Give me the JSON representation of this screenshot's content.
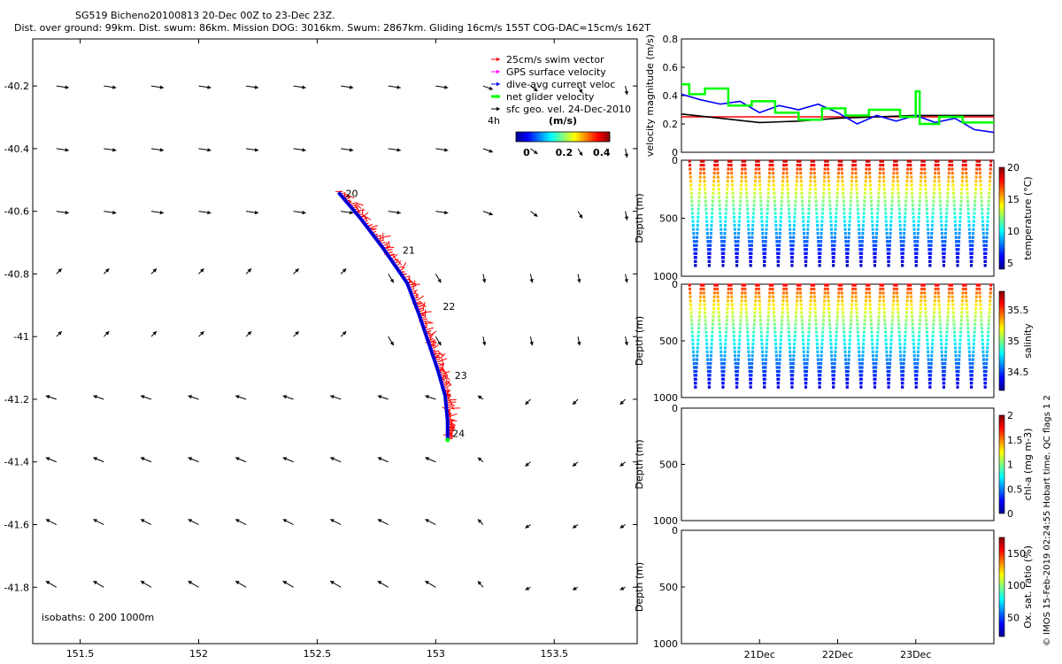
{
  "title": {
    "line1": "SG519 Bicheno20100813 20-Dec 00Z to 23-Dec 23Z.",
    "line2": "Dist. over ground: 99km. Dist. swum: 86km. Mission DOG: 3016km. Swum: 2867km. Gliding 16cm/s 155T COG-DAC=15cm/s 162T"
  },
  "credit": "© IMOS 15-Feb-2019 02:24:55 Hobart time. QC flags 1  2",
  "colors": {
    "swim": "#ff0000",
    "gps": "#ff00ff",
    "dac": "#0000ff",
    "glider": "#00ff00",
    "geo": "#000000"
  },
  "chart_data": [
    {
      "type": "scatter",
      "name": "map",
      "xlim": [
        151.3,
        153.85
      ],
      "ylim": [
        -41.98,
        -40.05
      ],
      "x_ticks": [
        151.5,
        152,
        152.5,
        153,
        153.5
      ],
      "x_tick_labels": [
        "151.5",
        "152",
        "152.5",
        "153",
        "153.5"
      ],
      "y_ticks": [
        -40.2,
        -40.4,
        -40.6,
        -40.8,
        -41,
        -41.2,
        -41.4,
        -41.6,
        -41.8
      ],
      "y_tick_labels": [
        "-40.2",
        "-40.4",
        "-40.6",
        "-40.8",
        "-41",
        "-41.2",
        "-41.4",
        "-41.6",
        "-41.8"
      ],
      "legend": {
        "placement": "top-right",
        "entries": [
          "25cm/s swim vector",
          "GPS surface velocity",
          "dive-avg current veloc",
          "net glider velocity",
          "sfc geo. vel. 24-Dec-2010"
        ]
      },
      "colorbar": {
        "label": "(m/s)",
        "prefix": "4h",
        "ticks": [
          0,
          0.2,
          0.4
        ],
        "tick_labels": [
          "0",
          "0.2",
          "0.4"
        ],
        "range": [
          0,
          0.5
        ]
      },
      "isobaths_label": "isobaths: 0   200   1000m",
      "track": {
        "lon": [
          152.59,
          152.68,
          152.78,
          152.88,
          152.93,
          152.97,
          153.01,
          153.04,
          153.05,
          153.05
        ],
        "lat": [
          -40.54,
          -40.62,
          -40.72,
          -40.83,
          -40.93,
          -41.02,
          -41.11,
          -41.19,
          -41.27,
          -41.33
        ]
      },
      "day_labels": [
        {
          "text": "20",
          "lon": 152.62,
          "lat": -40.555
        },
        {
          "text": "21",
          "lon": 152.86,
          "lat": -40.735
        },
        {
          "text": "22",
          "lon": 153.03,
          "lat": -40.915
        },
        {
          "text": "23",
          "lon": 153.08,
          "lat": -41.135
        },
        {
          "text": "24",
          "lon": 153.07,
          "lat": -41.32
        }
      ],
      "geo_grid": {
        "lon": [
          151.4,
          151.6,
          151.8,
          152.0,
          152.2,
          152.4,
          152.6,
          152.8,
          153.0,
          153.2,
          153.4,
          153.6,
          153.8
        ],
        "lat": [
          -40.2,
          -40.4,
          -40.6,
          -40.8,
          -41.0,
          -41.2,
          -41.4,
          -41.6,
          -41.8
        ]
      }
    },
    {
      "type": "line",
      "name": "velocity",
      "ylabel": "velocity magnitude (m/s)",
      "ylim": [
        0,
        0.8
      ],
      "y_ticks": [
        0,
        0.2,
        0.4,
        0.6,
        0.8
      ],
      "y_tick_labels": [
        "0",
        "0.2",
        "0.4",
        "0.6",
        "0.8"
      ],
      "xlim": [
        0,
        4
      ],
      "series": [
        {
          "color": "#ff0000",
          "values": [
            [
              0.0,
              0.25
            ],
            [
              4.0,
              0.25
            ]
          ]
        },
        {
          "color": "#000000",
          "values": [
            [
              0,
              0.27
            ],
            [
              0.5,
              0.24
            ],
            [
              1.0,
              0.21
            ],
            [
              1.5,
              0.22
            ],
            [
              2.0,
              0.24
            ],
            [
              2.5,
              0.25
            ],
            [
              3.0,
              0.26
            ],
            [
              3.5,
              0.26
            ],
            [
              4.0,
              0.26
            ]
          ]
        },
        {
          "color": "#0000ff",
          "values": [
            [
              0,
              0.41
            ],
            [
              0.25,
              0.37
            ],
            [
              0.5,
              0.34
            ],
            [
              0.75,
              0.36
            ],
            [
              1.0,
              0.28
            ],
            [
              1.25,
              0.33
            ],
            [
              1.5,
              0.3
            ],
            [
              1.75,
              0.34
            ],
            [
              2.0,
              0.28
            ],
            [
              2.25,
              0.2
            ],
            [
              2.5,
              0.26
            ],
            [
              2.75,
              0.22
            ],
            [
              3.0,
              0.26
            ],
            [
              3.25,
              0.21
            ],
            [
              3.5,
              0.24
            ],
            [
              3.75,
              0.16
            ],
            [
              4.0,
              0.14
            ]
          ]
        },
        {
          "color": "#00ff00",
          "values": [
            [
              0,
              0.48
            ],
            [
              0.1,
              0.48
            ],
            [
              0.1,
              0.41
            ],
            [
              0.3,
              0.41
            ],
            [
              0.3,
              0.45
            ],
            [
              0.6,
              0.45
            ],
            [
              0.6,
              0.33
            ],
            [
              0.9,
              0.33
            ],
            [
              0.9,
              0.36
            ],
            [
              1.2,
              0.36
            ],
            [
              1.2,
              0.28
            ],
            [
              1.5,
              0.28
            ],
            [
              1.5,
              0.23
            ],
            [
              1.8,
              0.23
            ],
            [
              1.8,
              0.31
            ],
            [
              2.1,
              0.31
            ],
            [
              2.1,
              0.26
            ],
            [
              2.4,
              0.26
            ],
            [
              2.4,
              0.3
            ],
            [
              2.8,
              0.3
            ],
            [
              2.8,
              0.25
            ],
            [
              3.0,
              0.25
            ],
            [
              3.0,
              0.43
            ],
            [
              3.05,
              0.43
            ],
            [
              3.05,
              0.2
            ],
            [
              3.3,
              0.2
            ],
            [
              3.3,
              0.25
            ],
            [
              3.6,
              0.25
            ],
            [
              3.6,
              0.21
            ],
            [
              4.0,
              0.21
            ]
          ]
        }
      ]
    },
    {
      "type": "scatter",
      "name": "temperature",
      "ylabel": "Depth (m)",
      "colorbar_label": "temperature (°C)",
      "ylim": [
        1000,
        0
      ],
      "y_ticks": [
        0,
        500,
        1000
      ],
      "y_tick_labels": [
        "0",
        "500",
        "1000"
      ],
      "clim": [
        4,
        20
      ],
      "colorbar_ticks": [
        5,
        10,
        15,
        20
      ],
      "colorbar_tick_labels": [
        "5",
        "10",
        "15",
        "20"
      ],
      "dives": 22,
      "max_depth": 900,
      "surface_value": 19,
      "deep_value": 5
    },
    {
      "type": "scatter",
      "name": "salinity",
      "ylabel": "Depth (m)",
      "colorbar_label": "salinity",
      "ylim": [
        1000,
        0
      ],
      "y_ticks": [
        0,
        500,
        1000
      ],
      "y_tick_labels": [
        "0",
        "500",
        "1000"
      ],
      "clim": [
        34.2,
        35.8
      ],
      "colorbar_ticks": [
        34.5,
        35,
        35.5
      ],
      "colorbar_tick_labels": [
        "34.5",
        "35",
        "35.5"
      ],
      "dives": 22,
      "max_depth": 900,
      "surface_value": 35.6,
      "deep_value": 34.35
    },
    {
      "type": "scatter",
      "name": "chla",
      "ylabel": "Depth (m)",
      "colorbar_label": "chl-a (mg m-3)",
      "ylim": [
        1000,
        0
      ],
      "y_ticks": [
        0,
        500,
        1000
      ],
      "y_tick_labels": [
        "0",
        "500",
        "1000"
      ],
      "clim": [
        0,
        2
      ],
      "colorbar_ticks": [
        0,
        0.5,
        1,
        1.5,
        2
      ],
      "colorbar_tick_labels": [
        "0",
        "0.5",
        "1",
        "1.5",
        "2"
      ]
    },
    {
      "type": "scatter",
      "name": "oxsat",
      "ylabel": "Depth (m)",
      "colorbar_label": "Ox. sat. ratio (%)",
      "ylim": [
        1000,
        0
      ],
      "y_ticks": [
        0,
        500,
        1000
      ],
      "y_tick_labels": [
        "0",
        "500",
        "1000"
      ],
      "clim": [
        20,
        175
      ],
      "colorbar_ticks": [
        50,
        100,
        150
      ],
      "colorbar_tick_labels": [
        "50",
        "100",
        "150"
      ],
      "x_tick_labels": [
        "21Dec",
        "22Dec",
        "23Dec"
      ],
      "x_ticks": [
        1,
        2,
        3
      ],
      "xlim": [
        0,
        4
      ]
    }
  ]
}
